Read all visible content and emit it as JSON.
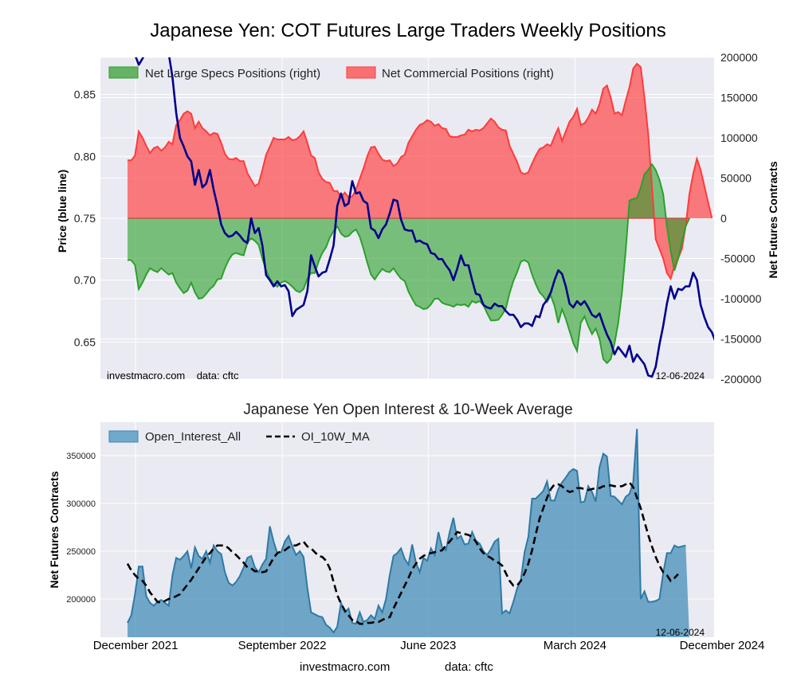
{
  "title": "Japanese Yen: COT Futures Large Traders Weekly Positions",
  "top_chart": {
    "left_label": "Price (blue line)",
    "right_label": "Net Futures Contracts",
    "watermark": "investmacro.com    data: cftc",
    "date_stamp": "12-06-2024",
    "legend": [
      "Net Large Specs Positions (right)",
      "Net Commercial Positions (right)"
    ]
  },
  "bottom_chart": {
    "title": "Japanese Yen Open Interest & 10-Week Average",
    "ylabel": "Net Futures Contracts",
    "date_stamp": "12-06-2024",
    "legend": [
      "Open_Interest_All",
      "OI_10W_MA"
    ]
  },
  "footer": {
    "source": "investmacro.com",
    "data": "data: cftc"
  },
  "colors": {
    "specs": "#2ca02c",
    "commercial": "#ff3b3b",
    "price": "#00008b",
    "oi": "#3b87b4",
    "ma": "#000000",
    "panel": "#eaeaf2"
  },
  "chart_data": [
    {
      "type": "area",
      "title": "Japanese Yen: COT Futures Large Traders Weekly Positions",
      "x_axis": "weeks",
      "x_start": "2021-11-16",
      "x_tick_labels": [
        "December 2021",
        "September 2022",
        "June 2023",
        "March 2024",
        "December 2024"
      ],
      "x_tick_dates": [
        "2021-12-01",
        "2022-09-01",
        "2023-06-01",
        "2024-03-01",
        "2024-12-01"
      ],
      "ylabel_left": "Price (blue line)",
      "ylabel_right": "Net Futures Contracts",
      "ylim_left": [
        0.62,
        0.88
      ],
      "yticks_left": [
        0.65,
        0.7,
        0.75,
        0.8,
        0.85
      ],
      "ylim_right": [
        -200000,
        200000
      ],
      "yticks_right": [
        200000,
        150000,
        100000,
        50000,
        0,
        -50000,
        -100000,
        -150000,
        -200000
      ],
      "grid": true,
      "legend_position": "top-left",
      "series": [
        {
          "name": "Net Large Specs Positions (right)",
          "values": [
            -52000,
            -52000,
            -58000,
            -88000,
            -80000,
            -70000,
            -62000,
            -65000,
            -67000,
            -62000,
            -66000,
            -70000,
            -68000,
            -80000,
            -87000,
            -93000,
            -90000,
            -80000,
            -92000,
            -100000,
            -99000,
            -94000,
            -88000,
            -84000,
            -76000,
            -75000,
            -62000,
            -52000,
            -45000,
            -43000,
            -45000,
            -46000,
            -30000,
            -25000,
            -28000,
            -33000,
            -50000,
            -65000,
            -75000,
            -82000,
            -85000,
            -80000,
            -78000,
            -81000,
            -85000,
            -90000,
            -92000,
            -88000,
            -75000,
            -68000,
            -68000,
            -54000,
            -43000,
            -36000,
            -24000,
            -16000,
            -10000,
            -19000,
            -23000,
            -22000,
            -17000,
            -14000,
            -23000,
            -38000,
            -55000,
            -70000,
            -76000,
            -69000,
            -63000,
            -66000,
            -67000,
            -62000,
            -69000,
            -75000,
            -78000,
            -91000,
            -100000,
            -108000,
            -110000,
            -113000,
            -112000,
            -107000,
            -100000,
            -100000,
            -105000,
            -107000,
            -108000,
            -110000,
            -107000,
            -108000,
            -107000,
            -110000,
            -103000,
            -105000,
            -103000,
            -108000,
            -118000,
            -127000,
            -127000,
            -126000,
            -120000,
            -112000,
            -93000,
            -78000,
            -67000,
            -54000,
            -52000,
            -55000,
            -70000,
            -82000,
            -92000,
            -97000,
            -104000,
            -96000,
            -109000,
            -130000,
            -113000,
            -125000,
            -140000,
            -155000,
            -165000,
            -130000,
            -122000,
            -134000,
            -144000,
            -137000,
            -150000,
            -175000,
            -180000,
            -175000,
            -156000,
            -130000,
            -92000,
            -40000,
            22000,
            24000,
            25000,
            38000,
            55000,
            60000,
            67000,
            60000,
            48000,
            30000,
            -10000,
            -40000,
            -65000,
            -50000,
            -30000,
            -10000,
            0
          ],
          "color": "#2ca02c"
        },
        {
          "name": "Net Commercial Positions (right)",
          "values": [
            72000,
            72000,
            78000,
            108000,
            100000,
            90000,
            81000,
            87000,
            89000,
            84000,
            88000,
            95000,
            92000,
            116000,
            122000,
            130000,
            133000,
            130000,
            112000,
            120000,
            112000,
            108000,
            103000,
            106000,
            105000,
            94000,
            80000,
            74000,
            73000,
            75000,
            71000,
            71000,
            56000,
            48000,
            40000,
            43000,
            60000,
            79000,
            89000,
            100000,
            98000,
            98000,
            98000,
            101000,
            97000,
            98000,
            102000,
            108000,
            94000,
            78000,
            75000,
            57000,
            49000,
            45000,
            44000,
            34000,
            34000,
            26000,
            32000,
            26000,
            27000,
            36000,
            49000,
            62000,
            77000,
            88000,
            89000,
            80000,
            73000,
            71000,
            72000,
            65000,
            68000,
            76000,
            79000,
            94000,
            102000,
            110000,
            116000,
            118000,
            122000,
            120000,
            115000,
            117000,
            112000,
            111000,
            102000,
            101000,
            101000,
            103000,
            104000,
            110000,
            108000,
            110000,
            109000,
            112000,
            118000,
            124000,
            120000,
            113000,
            110000,
            109000,
            90000,
            80000,
            70000,
            57000,
            55000,
            57000,
            68000,
            78000,
            86000,
            88000,
            92000,
            90000,
            102000,
            112000,
            96000,
            108000,
            120000,
            126000,
            136000,
            116000,
            118000,
            125000,
            135000,
            130000,
            142000,
            161000,
            165000,
            150000,
            130000,
            132000,
            128000,
            146000,
            163000,
            186000,
            192000,
            188000,
            150000,
            105000,
            40000,
            -26000,
            -38000,
            -50000,
            -68000,
            -75000,
            -60000,
            -50000,
            -38000,
            -10000,
            30000,
            55000,
            74000,
            60000,
            40000,
            20000,
            0
          ],
          "color": "#ff3b3b"
        },
        {
          "name": "Price (blue line)",
          "axis": "left",
          "values": [
            0.889,
            0.885,
            0.882,
            0.874,
            0.879,
            0.885,
            0.888,
            0.884,
            0.882,
            0.886,
            0.887,
            0.883,
            0.864,
            0.835,
            0.815,
            0.808,
            0.8,
            0.796,
            0.777,
            0.789,
            0.775,
            0.778,
            0.789,
            0.773,
            0.76,
            0.745,
            0.738,
            0.735,
            0.736,
            0.739,
            0.736,
            0.732,
            0.73,
            0.75,
            0.738,
            0.742,
            0.728,
            0.704,
            0.7,
            0.695,
            0.699,
            0.695,
            0.696,
            0.691,
            0.671,
            0.676,
            0.678,
            0.68,
            0.691,
            0.72,
            0.711,
            0.703,
            0.706,
            0.707,
            0.717,
            0.728,
            0.76,
            0.77,
            0.76,
            0.762,
            0.78,
            0.77,
            0.771,
            0.764,
            0.762,
            0.742,
            0.74,
            0.734,
            0.741,
            0.745,
            0.754,
            0.765,
            0.764,
            0.749,
            0.741,
            0.74,
            0.74,
            0.731,
            0.732,
            0.73,
            0.729,
            0.722,
            0.721,
            0.717,
            0.717,
            0.712,
            0.708,
            0.7,
            0.709,
            0.72,
            0.712,
            0.712,
            0.7,
            0.689,
            0.688,
            0.68,
            0.678,
            0.677,
            0.681,
            0.679,
            0.679,
            0.675,
            0.672,
            0.672,
            0.668,
            0.662,
            0.665,
            0.665,
            0.663,
            0.671,
            0.67,
            0.68,
            0.684,
            0.69,
            0.7,
            0.708,
            0.705,
            0.695,
            0.681,
            0.678,
            0.683,
            0.68,
            0.683,
            0.678,
            0.672,
            0.67,
            0.673,
            0.664,
            0.656,
            0.65,
            0.64,
            0.646,
            0.642,
            0.638,
            0.647,
            0.634,
            0.64,
            0.636,
            0.632,
            0.623,
            0.622,
            0.63,
            0.648,
            0.663,
            0.681,
            0.695,
            0.685,
            0.693,
            0.692,
            0.695,
            0.695,
            0.706,
            0.7,
            0.68,
            0.67,
            0.662,
            0.658,
            0.65,
            0.648,
            0.649,
            0.655,
            0.668
          ],
          "color": "#00008b"
        }
      ]
    },
    {
      "type": "area",
      "title": "Japanese Yen Open Interest & 10-Week Average",
      "ylabel": "Net Futures Contracts",
      "ylim": [
        160000,
        385000
      ],
      "yticks": [
        200000,
        250000,
        300000,
        350000
      ],
      "grid": true,
      "legend_position": "top-left",
      "series": [
        {
          "name": "Open_Interest_All",
          "values": [
            175000,
            183000,
            205000,
            234000,
            234000,
            203000,
            196000,
            193000,
            197000,
            199000,
            196000,
            193000,
            225000,
            243000,
            241000,
            245000,
            250000,
            232000,
            254000,
            245000,
            242000,
            250000,
            238000,
            256000,
            250000,
            247000,
            228000,
            217000,
            214000,
            218000,
            224000,
            233000,
            243000,
            245000,
            233000,
            228000,
            236000,
            242000,
            276000,
            260000,
            248000,
            249000,
            260000,
            266000,
            255000,
            246000,
            250000,
            244000,
            212000,
            186000,
            184000,
            182000,
            181000,
            173000,
            170000,
            165000,
            171000,
            196000,
            186000,
            190000,
            175000,
            174000,
            186000,
            176000,
            178000,
            183000,
            179000,
            193000,
            186000,
            200000,
            225000,
            245000,
            248000,
            253000,
            242000,
            236000,
            257000,
            238000,
            228000,
            243000,
            240000,
            253000,
            246000,
            270000,
            254000,
            251000,
            270000,
            285000,
            263000,
            266000,
            257000,
            258000,
            270000,
            261000,
            258000,
            250000,
            246000,
            252000,
            260000,
            263000,
            185000,
            188000,
            185000,
            197000,
            211000,
            220000,
            249000,
            265000,
            305000,
            305000,
            309000,
            313000,
            323000,
            303000,
            303000,
            315000,
            322000,
            327000,
            333000,
            336000,
            334000,
            301000,
            302000,
            318000,
            312000,
            302000,
            338000,
            352000,
            349000,
            308000,
            307000,
            303000,
            299000,
            307000,
            310000,
            322000,
            378000,
            200000,
            208000,
            197000,
            197000,
            198000,
            200000,
            227000,
            248000,
            248000,
            256000,
            254000,
            255000,
            256000
          ],
          "color": "#3b87b4"
        },
        {
          "name": "OI_10W_MA",
          "values": [
            237000,
            230000,
            225000,
            221000,
            219000,
            214000,
            207000,
            202000,
            197000,
            196000,
            198000,
            200000,
            201000,
            203000,
            205000,
            210000,
            215000,
            220000,
            226000,
            232000,
            238000,
            244000,
            248000,
            253000,
            256000,
            256000,
            256000,
            253000,
            249000,
            246000,
            242000,
            238000,
            233000,
            232000,
            229000,
            229000,
            228000,
            229000,
            236000,
            243000,
            248000,
            250000,
            251000,
            254000,
            256000,
            256000,
            258000,
            260000,
            255000,
            253000,
            249000,
            245000,
            244000,
            240000,
            232000,
            218000,
            204000,
            195000,
            188000,
            183000,
            178000,
            177000,
            174000,
            174000,
            175000,
            175000,
            176000,
            176000,
            178000,
            180000,
            181000,
            190000,
            198000,
            206000,
            214000,
            222000,
            231000,
            237000,
            242000,
            245000,
            247000,
            248000,
            249000,
            250000,
            251000,
            256000,
            260000,
            265000,
            270000,
            269000,
            268000,
            267000,
            265000,
            260000,
            253000,
            248000,
            245000,
            243000,
            240000,
            238000,
            235000,
            227000,
            219000,
            214000,
            214000,
            219000,
            227000,
            237000,
            251000,
            268000,
            284000,
            295000,
            306000,
            315000,
            320000,
            320000,
            318000,
            314000,
            312000,
            313000,
            316000,
            316000,
            315000,
            314000,
            315000,
            316000,
            316000,
            318000,
            318000,
            319000,
            318000,
            318000,
            318000,
            320000,
            322000,
            317000,
            306000,
            295000,
            281000,
            267000,
            255000,
            244000,
            235000,
            228000,
            225000,
            219000,
            222000,
            226000
          ],
          "color": "#000000"
        }
      ]
    }
  ]
}
